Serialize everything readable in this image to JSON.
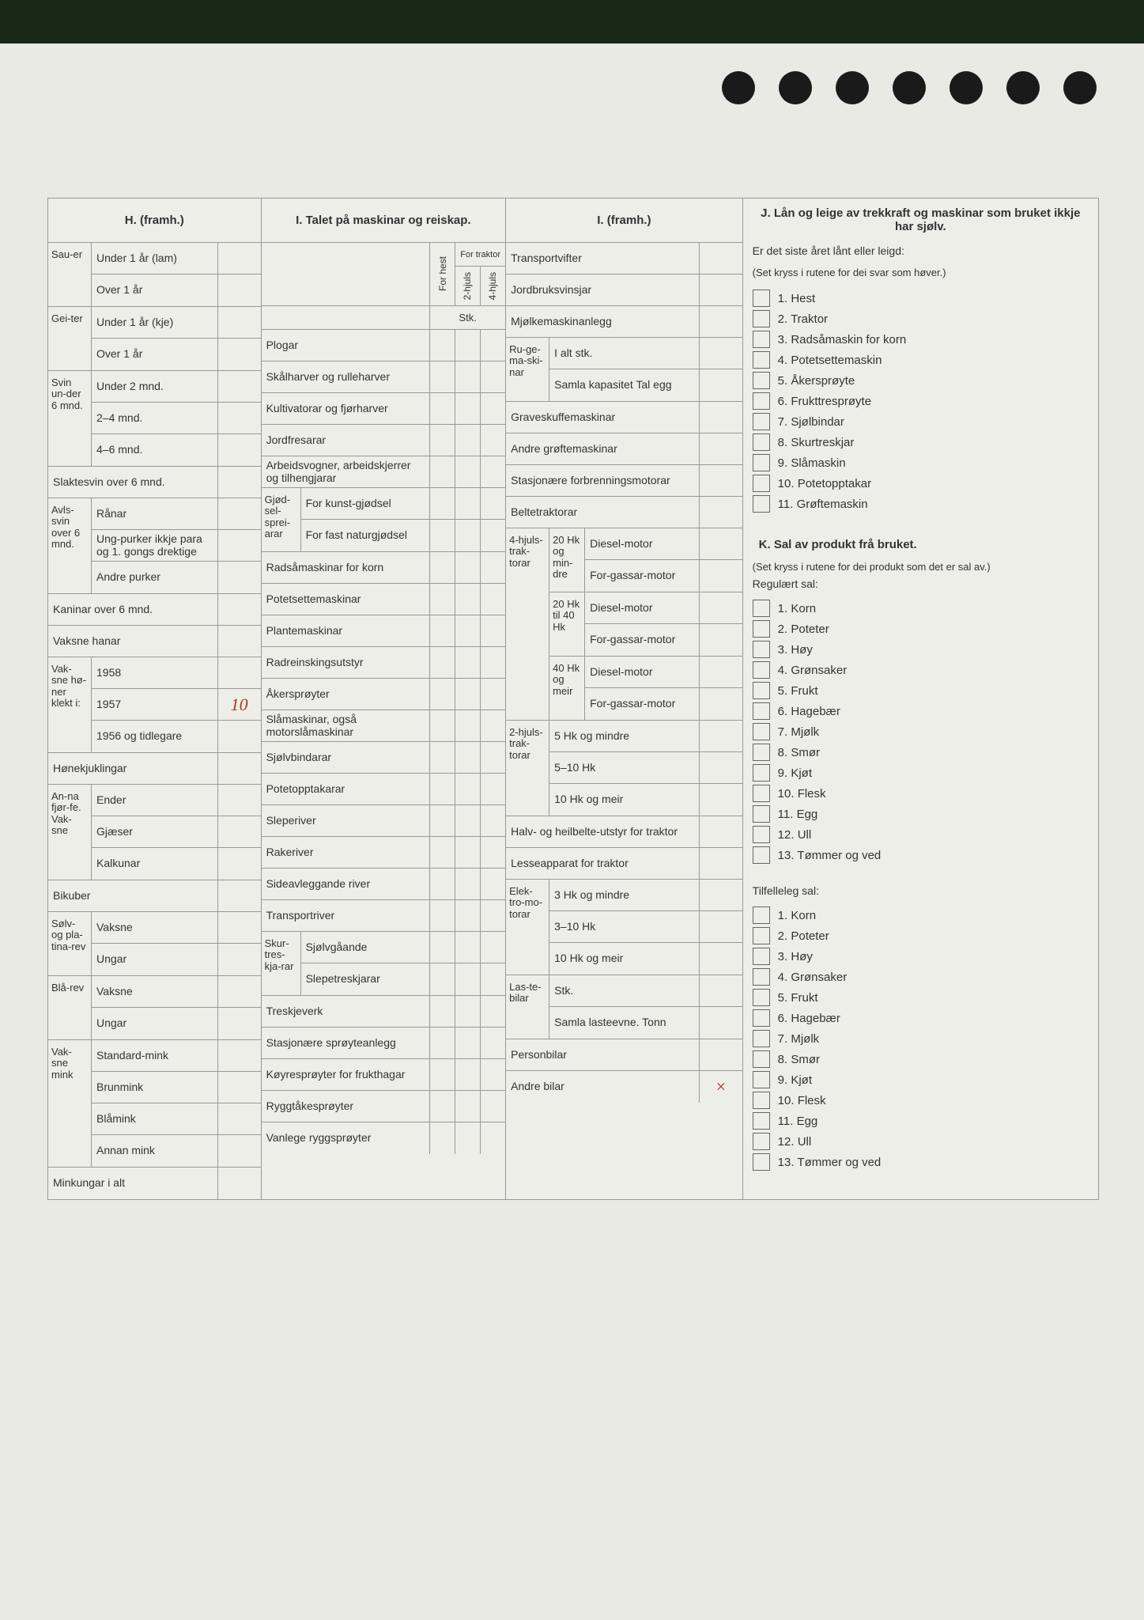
{
  "H": {
    "title": "H. (framh.)",
    "groups": [
      {
        "side": "Sau-er",
        "rows": [
          {
            "l": "Under 1 år (lam)"
          },
          {
            "l": "Over 1 år"
          }
        ]
      },
      {
        "side": "Gei-ter",
        "rows": [
          {
            "l": "Under 1 år (kje)"
          },
          {
            "l": "Over 1 år"
          }
        ]
      },
      {
        "side": "Svin un-der 6 mnd.",
        "rows": [
          {
            "l": "Under 2 mnd."
          },
          {
            "l": "2–4 mnd."
          },
          {
            "l": "4–6 mnd."
          }
        ]
      },
      {
        "side": "",
        "rows": [
          {
            "l": "Slaktesvin over 6 mnd.",
            "full": true
          }
        ]
      },
      {
        "side": "Avls-svin over 6 mnd.",
        "rows": [
          {
            "l": "Rånar"
          },
          {
            "l": "Ung-purker ikkje para og 1. gongs drektige"
          },
          {
            "l": "Andre purker"
          }
        ]
      },
      {
        "side": "",
        "rows": [
          {
            "l": "Kaninar over 6 mnd.",
            "full": true
          }
        ]
      },
      {
        "side": "",
        "rows": [
          {
            "l": "Vaksne hanar",
            "full": true
          }
        ]
      },
      {
        "side": "Vak-sne hø-ner klekt i:",
        "rows": [
          {
            "l": "1958"
          },
          {
            "l": "1957",
            "v": "10"
          },
          {
            "l": "1956 og tidlegare"
          }
        ]
      },
      {
        "side": "",
        "rows": [
          {
            "l": "Hønekjuklingar",
            "full": true
          }
        ]
      },
      {
        "side": "An-na fjør-fe. Vak-sne",
        "rows": [
          {
            "l": "Ender"
          },
          {
            "l": "Gjæser"
          },
          {
            "l": "Kalkunar"
          }
        ]
      },
      {
        "side": "",
        "rows": [
          {
            "l": "Bikuber",
            "full": true
          }
        ]
      },
      {
        "side": "Sølv- og pla-tina-rev",
        "rows": [
          {
            "l": "Vaksne"
          },
          {
            "l": "Ungar"
          }
        ]
      },
      {
        "side": "Blå-rev",
        "rows": [
          {
            "l": "Vaksne"
          },
          {
            "l": "Ungar"
          }
        ]
      },
      {
        "side": "Vak-sne mink",
        "rows": [
          {
            "l": "Standard-mink"
          },
          {
            "l": "Brunmink"
          },
          {
            "l": "Blåmink"
          },
          {
            "l": "Annan mink"
          }
        ]
      },
      {
        "side": "",
        "rows": [
          {
            "l": "Minkungar i alt",
            "full": true
          }
        ]
      }
    ]
  },
  "I1": {
    "title": "I. Talet på maskinar og reiskap.",
    "subhdr": {
      "a": "For traktor",
      "b": "For hest",
      "c": "2-hjuls",
      "d": "4-hjuls",
      "stk": "Stk."
    },
    "rows": [
      {
        "l": "Plogar"
      },
      {
        "l": "Skålharver og rulleharver"
      },
      {
        "l": "Kultivatorar og fjørharver"
      },
      {
        "l": "Jordfresarar"
      },
      {
        "l": "Arbeidsvogner, arbeidskjerrer og tilhengjarar"
      },
      {
        "side": "Gjød-sel-sprei-arar",
        "subs": [
          {
            "l": "For kunst-gjødsel"
          },
          {
            "l": "For fast naturgjødsel"
          }
        ]
      },
      {
        "l": "Radsåmaskinar for korn"
      },
      {
        "l": "Potetsettemaskinar"
      },
      {
        "l": "Plantemaskinar"
      },
      {
        "l": "Radreinskingsutstyr"
      },
      {
        "l": "Åkersprøyter"
      },
      {
        "l": "Slåmaskinar, også motorslåmaskinar"
      },
      {
        "l": "Sjølvbindarar"
      },
      {
        "l": "Potetopptakarar"
      },
      {
        "l": "Sleperiver"
      },
      {
        "l": "Rakeriver"
      },
      {
        "l": "Sideavleggande river"
      },
      {
        "l": "Transportriver"
      },
      {
        "side": "Skur-tres-kja-rar",
        "subs": [
          {
            "l": "Sjølvgåande"
          },
          {
            "l": "Slepetreskjarar"
          }
        ]
      },
      {
        "l": "Treskjeverk"
      },
      {
        "l": "Stasjonære sprøyteanlegg"
      },
      {
        "l": "Køyresprøyter for frukthagar"
      },
      {
        "l": "Ryggtåkesprøyter"
      },
      {
        "l": "Vanlege ryggsprøyter"
      }
    ]
  },
  "I2": {
    "title": "I. (framh.)",
    "rows": [
      {
        "l": "Transportvifter"
      },
      {
        "l": "Jordbruksvinsjar"
      },
      {
        "l": "Mjølkemaskinanlegg"
      },
      {
        "side": "Ru-ge-ma-ski-nar",
        "subs": [
          {
            "l": "I alt stk."
          },
          {
            "l": "Samla kapasitet Tal egg"
          }
        ]
      },
      {
        "l": "Graveskuffemaskinar"
      },
      {
        "l": "Andre grøftemaskinar"
      },
      {
        "l": "Stasjonære forbrenningsmotorar"
      },
      {
        "l": "Beltetraktorar"
      },
      {
        "side": "4-hjuls-trak-torar",
        "subs": [
          {
            "side2": "20 Hk og min-dre",
            "subs": [
              {
                "l": "Diesel-motor"
              },
              {
                "l": "For-gassar-motor"
              }
            ]
          },
          {
            "side2": "20 Hk til 40 Hk",
            "subs": [
              {
                "l": "Diesel-motor"
              },
              {
                "l": "For-gassar-motor"
              }
            ]
          },
          {
            "side2": "40 Hk og meir",
            "subs": [
              {
                "l": "Diesel-motor"
              },
              {
                "l": "For-gassar-motor"
              }
            ]
          }
        ]
      },
      {
        "side": "2-hjuls-trak-torar",
        "subs": [
          {
            "l": "5 Hk og mindre"
          },
          {
            "l": "5–10 Hk"
          },
          {
            "l": "10 Hk og meir"
          }
        ]
      },
      {
        "l": "Halv- og heilbelte-utstyr for traktor"
      },
      {
        "l": "Lesseapparat for traktor"
      },
      {
        "side": "Elek-tro-mo-torar",
        "subs": [
          {
            "l": "3 Hk og mindre"
          },
          {
            "l": "3–10 Hk"
          },
          {
            "l": "10 Hk og meir"
          }
        ]
      },
      {
        "side": "Las-te-bilar",
        "subs": [
          {
            "l": "Stk."
          },
          {
            "l": "Samla lasteevne. Tonn"
          }
        ]
      },
      {
        "l": "Personbilar"
      },
      {
        "l": "Andre bilar",
        "v": "×"
      }
    ]
  },
  "J": {
    "title": "J. Lån og leige av trekkraft og maskinar som bruket ikkje har sjølv.",
    "sub": "Er det siste året lånt eller leigd:",
    "note": "(Set kryss i rutene for dei svar som høver.)",
    "items": [
      "1. Hest",
      "2. Traktor",
      "3. Radsåmaskin for korn",
      "4. Potetsettemaskin",
      "5. Åkersprøyte",
      "6. Frukttresprøyte",
      "7. Sjølbindar",
      "8. Skurtreskjar",
      "9. Slåmaskin",
      "10. Potetopptakar",
      "11. Grøftemaskin"
    ]
  },
  "K": {
    "title": "K. Sal av produkt frå bruket.",
    "note": "(Set kryss i rutene for dei produkt som det er sal av.)",
    "reg_title": "Regulært sal:",
    "reg": [
      "1. Korn",
      "2. Poteter",
      "3. Høy",
      "4. Grønsaker",
      "5. Frukt",
      "6. Hagebær",
      "7. Mjølk",
      "8. Smør",
      "9. Kjøt",
      "10. Flesk",
      "11. Egg",
      "12. Ull",
      "13. Tømmer og ved"
    ],
    "til_title": "Tilfelleleg sal:",
    "til": [
      "1. Korn",
      "2. Poteter",
      "3. Høy",
      "4. Grønsaker",
      "5. Frukt",
      "6. Hagebær",
      "7. Mjølk",
      "8. Smør",
      "9. Kjøt",
      "10. Flesk",
      "11. Egg",
      "12. Ull",
      "13. Tømmer og ved"
    ]
  },
  "colors": {
    "ink": "#333",
    "hand": "#b0352a",
    "paper": "#edeee8",
    "border": "#999"
  }
}
